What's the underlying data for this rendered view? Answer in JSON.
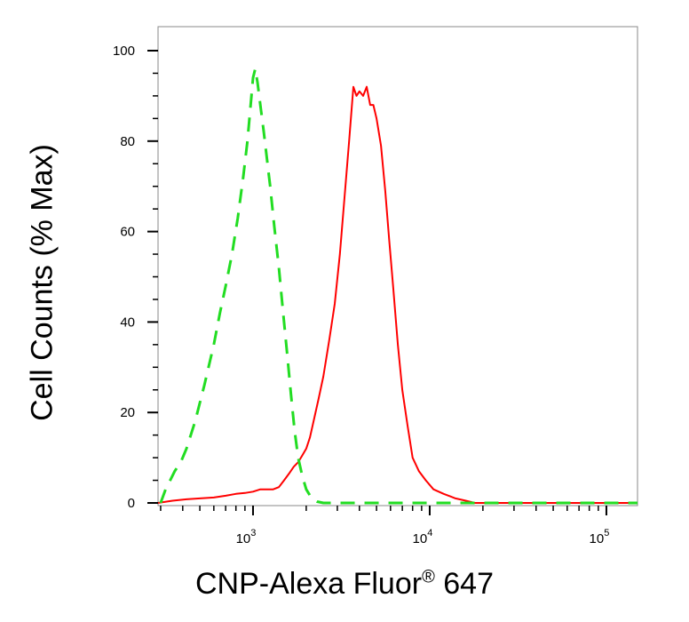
{
  "chart_data": {
    "type": "line",
    "title": "",
    "xlabel": "CNP-Alexa Fluor® 647",
    "xlabel_main": "CNP-Alexa Fluor",
    "xlabel_mark": "®",
    "xlabel_suffix": " 647",
    "ylabel": "Cell Counts (% Max)",
    "x_scale": "log",
    "xlim": [
      290,
      150000
    ],
    "ylim": [
      0,
      105
    ],
    "x_ticks": [
      {
        "value": 1000,
        "base": "10",
        "exp": "3"
      },
      {
        "value": 10000,
        "base": "10",
        "exp": "4"
      },
      {
        "value": 100000,
        "base": "10",
        "exp": "5"
      }
    ],
    "y_ticks": [
      "0",
      "20",
      "40",
      "60",
      "80",
      "100"
    ],
    "grid": false,
    "series": [
      {
        "color": "#ff0000",
        "style": "solid",
        "points": [
          [
            290,
            0
          ],
          [
            350,
            0.5
          ],
          [
            420,
            0.8
          ],
          [
            500,
            1
          ],
          [
            600,
            1.2
          ],
          [
            700,
            1.6
          ],
          [
            800,
            2
          ],
          [
            900,
            2.2
          ],
          [
            1000,
            2.5
          ],
          [
            1100,
            3
          ],
          [
            1200,
            3
          ],
          [
            1300,
            3
          ],
          [
            1400,
            3.5
          ],
          [
            1500,
            5
          ],
          [
            1600,
            6.5
          ],
          [
            1700,
            8
          ],
          [
            1800,
            9
          ],
          [
            1900,
            10.5
          ],
          [
            2000,
            12
          ],
          [
            2100,
            14.5
          ],
          [
            2200,
            18
          ],
          [
            2350,
            23
          ],
          [
            2500,
            28
          ],
          [
            2700,
            36
          ],
          [
            2900,
            44
          ],
          [
            3100,
            55
          ],
          [
            3300,
            68
          ],
          [
            3500,
            80
          ],
          [
            3700,
            92
          ],
          [
            3850,
            90
          ],
          [
            4000,
            91
          ],
          [
            4200,
            90
          ],
          [
            4400,
            92
          ],
          [
            4600,
            88
          ],
          [
            4800,
            88
          ],
          [
            5000,
            85
          ],
          [
            5300,
            79
          ],
          [
            5600,
            69
          ],
          [
            5900,
            58
          ],
          [
            6200,
            48
          ],
          [
            6600,
            35
          ],
          [
            7000,
            25
          ],
          [
            7500,
            17
          ],
          [
            8000,
            10
          ],
          [
            8700,
            7
          ],
          [
            9500,
            5
          ],
          [
            10500,
            3
          ],
          [
            12000,
            2
          ],
          [
            14000,
            1
          ],
          [
            16000,
            0.5
          ],
          [
            18000,
            0
          ],
          [
            150000,
            0
          ]
        ]
      },
      {
        "color": "#22dd22",
        "style": "dashed",
        "points": [
          [
            300,
            0
          ],
          [
            320,
            3
          ],
          [
            340,
            5
          ],
          [
            360,
            7
          ],
          [
            390,
            9
          ],
          [
            420,
            12
          ],
          [
            470,
            18
          ],
          [
            530,
            26
          ],
          [
            600,
            35
          ],
          [
            650,
            42
          ],
          [
            700,
            48
          ],
          [
            760,
            55
          ],
          [
            820,
            63
          ],
          [
            880,
            72
          ],
          [
            930,
            80
          ],
          [
            970,
            88
          ],
          [
            1000,
            94
          ],
          [
            1030,
            96
          ],
          [
            1060,
            93
          ],
          [
            1100,
            88
          ],
          [
            1150,
            82
          ],
          [
            1200,
            76
          ],
          [
            1250,
            70
          ],
          [
            1320,
            61
          ],
          [
            1400,
            52
          ],
          [
            1480,
            42
          ],
          [
            1560,
            33
          ],
          [
            1640,
            24
          ],
          [
            1720,
            16
          ],
          [
            1800,
            10
          ],
          [
            1900,
            6
          ],
          [
            2000,
            3
          ],
          [
            2150,
            1
          ],
          [
            2300,
            0.3
          ],
          [
            2500,
            0
          ],
          [
            150000,
            0
          ]
        ]
      }
    ]
  }
}
